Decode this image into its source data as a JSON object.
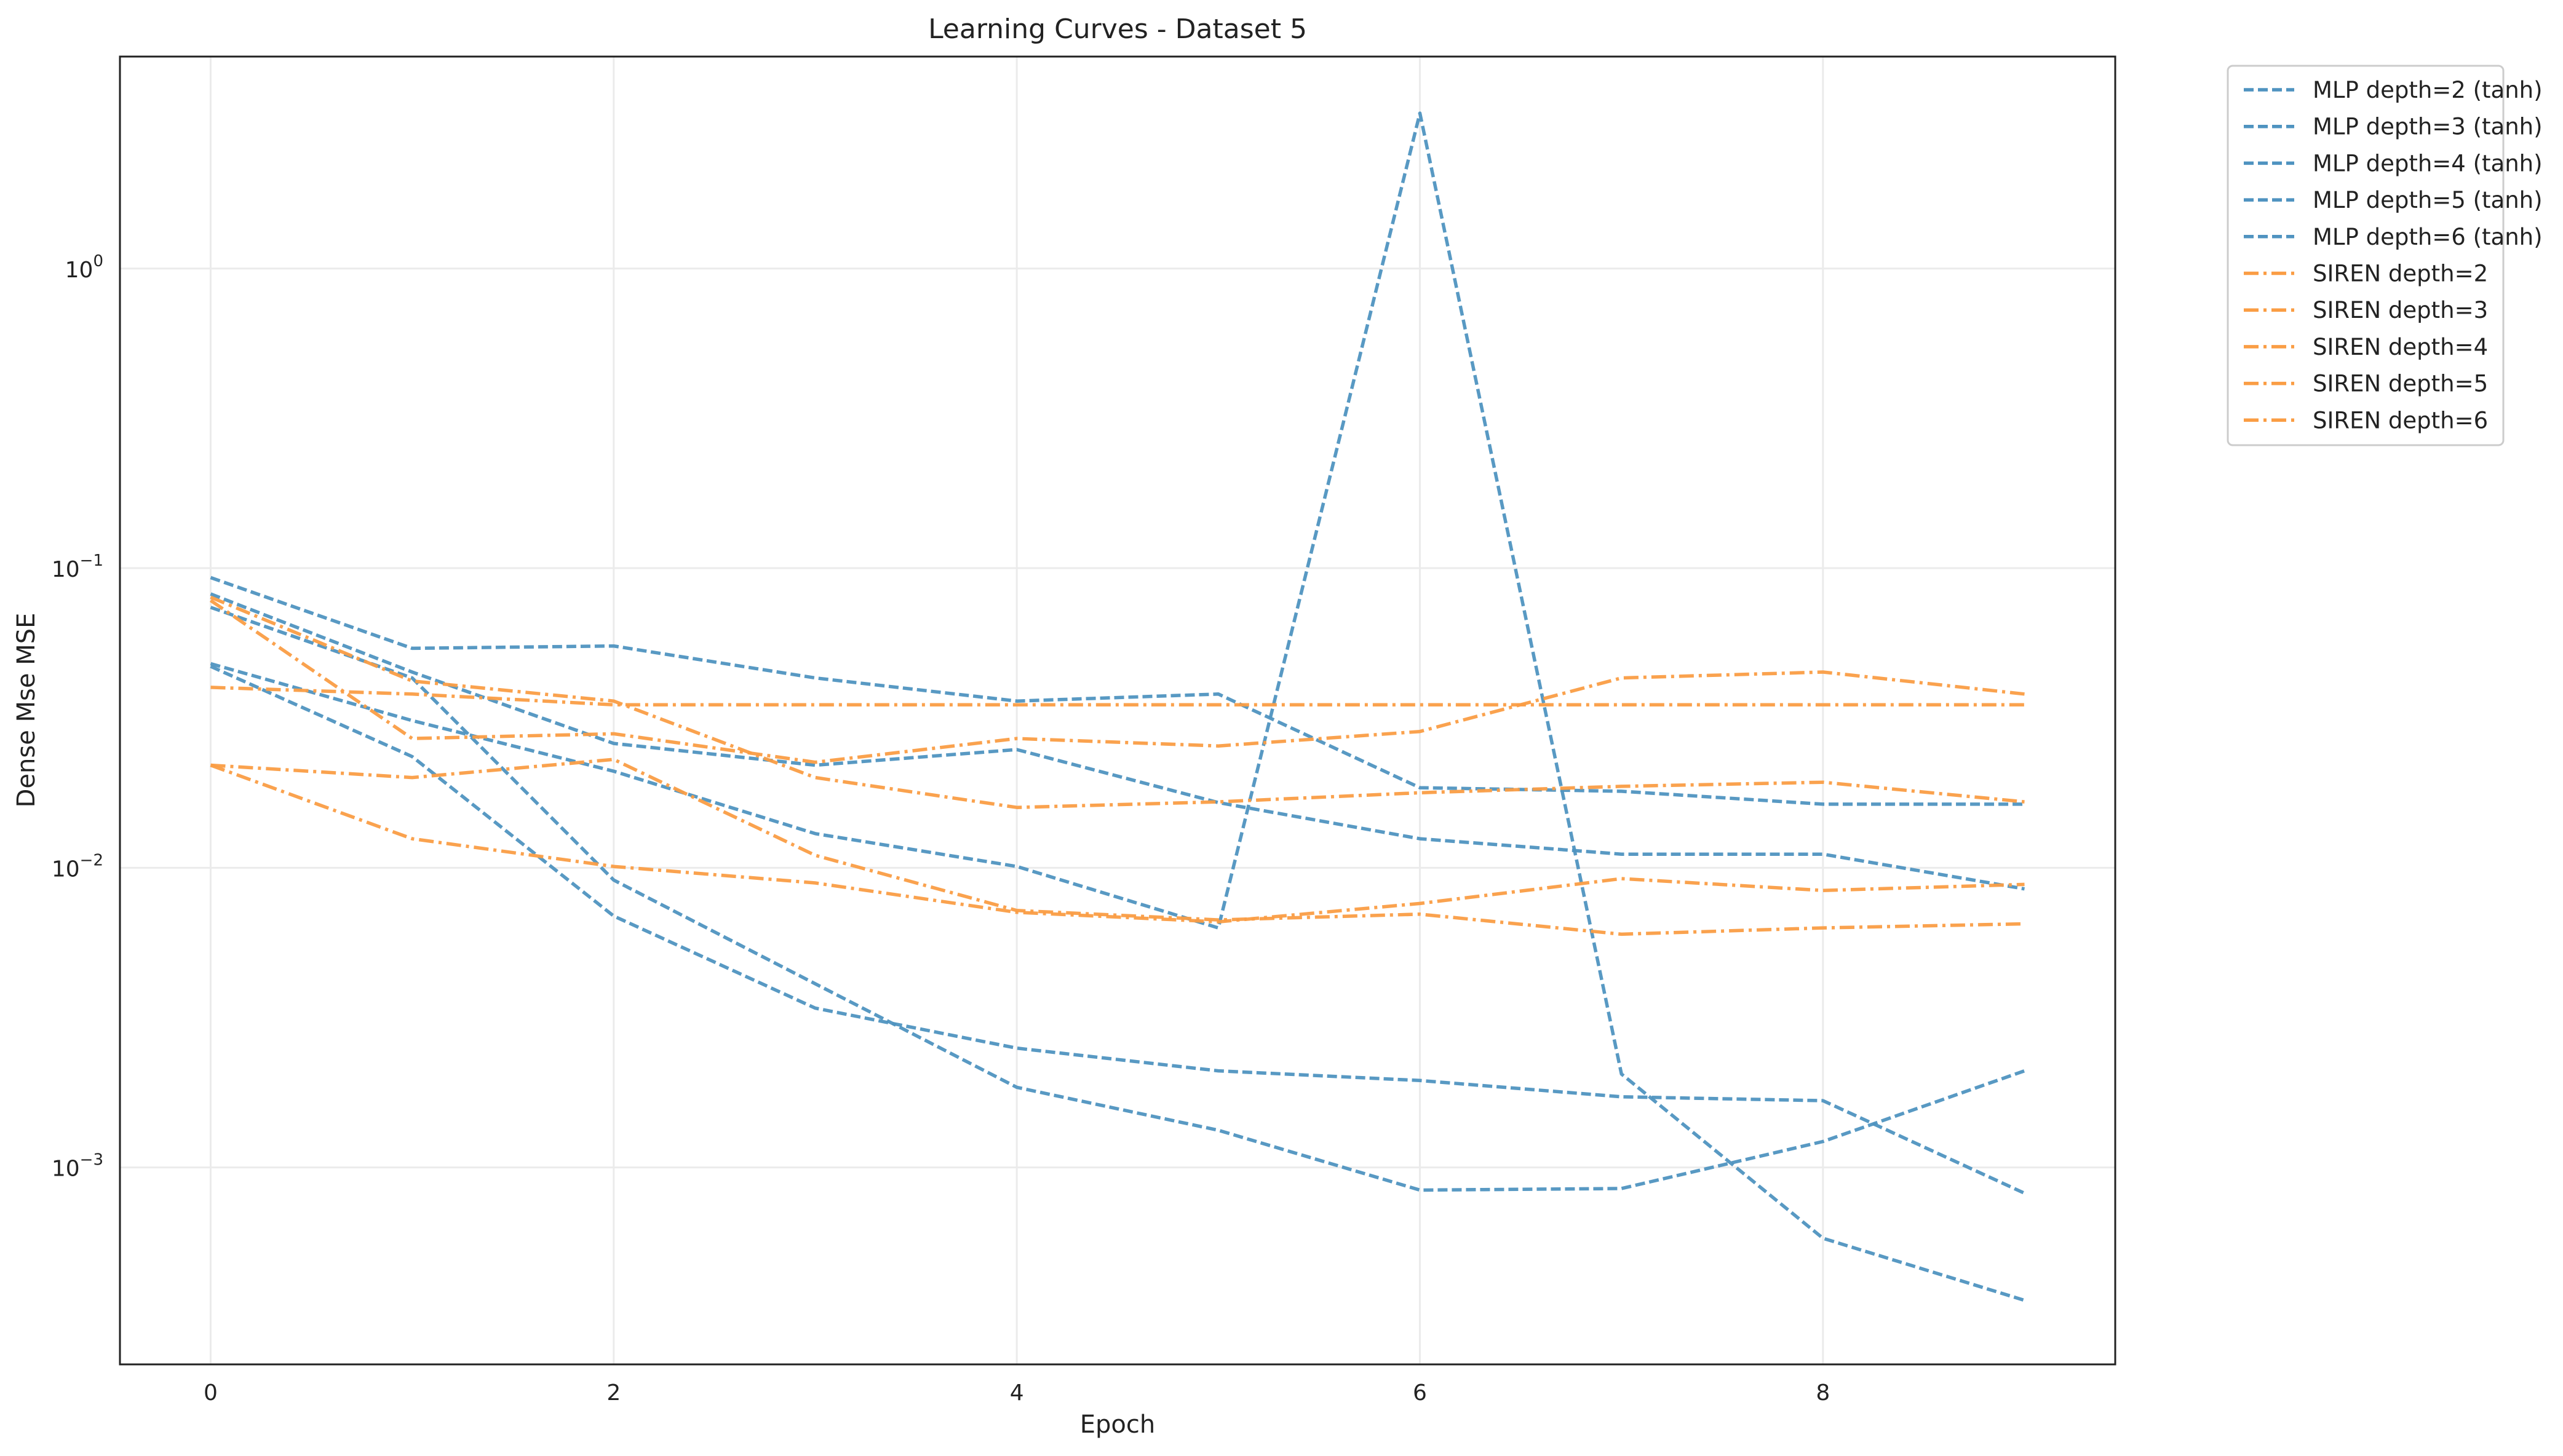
{
  "chart_data": {
    "type": "line",
    "title": "Learning Curves - Dataset 5",
    "xlabel": "Epoch",
    "ylabel": "Dense Mse MSE",
    "yscale": "log",
    "xlim": [
      -0.45,
      9.45
    ],
    "ylim": [
      0.00022,
      5.1
    ],
    "x_ticks": [
      0,
      2,
      4,
      6,
      8
    ],
    "y_ticks": [
      {
        "value": 0.001,
        "base": "10",
        "exp": "−3"
      },
      {
        "value": 0.01,
        "base": "10",
        "exp": "−2"
      },
      {
        "value": 0.1,
        "base": "10",
        "exp": "−1"
      },
      {
        "value": 1,
        "base": "10",
        "exp": "0"
      }
    ],
    "grid": true,
    "legend_position": "outside-top-right",
    "colors": {
      "mlp": "#4f93c0",
      "siren": "#fa9d44"
    },
    "x": [
      0,
      1,
      2,
      3,
      4,
      5,
      6,
      7,
      8,
      9
    ],
    "series": [
      {
        "name": "MLP depth=2 (tanh)",
        "style": "dashed",
        "color": "#4f93c0",
        "values": [
          0.048,
          0.031,
          0.021,
          0.013,
          0.0101,
          0.0063,
          3.3,
          0.00205,
          0.00058,
          0.00036
        ]
      },
      {
        "name": "MLP depth=3 (tanh)",
        "style": "dashed",
        "color": "#4f93c0",
        "values": [
          0.074,
          0.043,
          0.0091,
          0.0041,
          0.00185,
          0.00133,
          0.00084,
          0.00085,
          0.00122,
          0.0021
        ]
      },
      {
        "name": "MLP depth=4 (tanh)",
        "style": "dashed",
        "color": "#4f93c0",
        "values": [
          0.082,
          0.045,
          0.026,
          0.022,
          0.0248,
          0.0165,
          0.0125,
          0.0111,
          0.0111,
          0.0085
        ]
      },
      {
        "name": "MLP depth=5 (tanh)",
        "style": "dashed",
        "color": "#4f93c0",
        "values": [
          0.047,
          0.0235,
          0.0069,
          0.0034,
          0.0025,
          0.0021,
          0.00195,
          0.00172,
          0.00167,
          0.00082
        ]
      },
      {
        "name": "MLP depth=6 (tanh)",
        "style": "dashed",
        "color": "#4f93c0",
        "values": [
          0.093,
          0.054,
          0.055,
          0.043,
          0.036,
          0.038,
          0.0185,
          0.018,
          0.0163,
          0.0163
        ]
      },
      {
        "name": "SIREN depth=2",
        "style": "dashdot",
        "color": "#fa9d44",
        "values": [
          0.022,
          0.0125,
          0.0101,
          0.0089,
          0.0071,
          0.0066,
          0.0076,
          0.0092,
          0.0084,
          0.0088
        ]
      },
      {
        "name": "SIREN depth=3",
        "style": "dashdot",
        "color": "#fa9d44",
        "values": [
          0.022,
          0.02,
          0.023,
          0.011,
          0.0072,
          0.0067,
          0.007,
          0.006,
          0.0063,
          0.0065
        ]
      },
      {
        "name": "SIREN depth=4",
        "style": "dashdot",
        "color": "#fa9d44",
        "values": [
          0.08,
          0.042,
          0.036,
          0.02,
          0.0159,
          0.0166,
          0.0178,
          0.0187,
          0.0193,
          0.0166
        ]
      },
      {
        "name": "SIREN depth=5",
        "style": "dashdot",
        "color": "#fa9d44",
        "values": [
          0.04,
          0.038,
          0.035,
          0.035,
          0.035,
          0.035,
          0.035,
          0.035,
          0.035,
          0.035
        ]
      },
      {
        "name": "SIREN depth=6",
        "style": "dashdot",
        "color": "#fa9d44",
        "values": [
          0.078,
          0.027,
          0.028,
          0.0225,
          0.027,
          0.0255,
          0.0285,
          0.043,
          0.045,
          0.038
        ]
      }
    ]
  }
}
